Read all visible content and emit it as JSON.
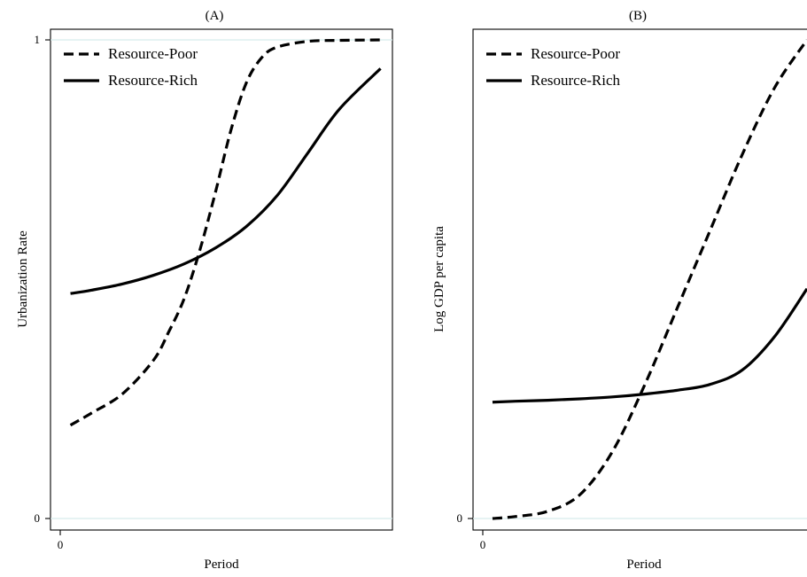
{
  "chart_data": [
    {
      "type": "line",
      "title": "(A)",
      "xlabel": "Period",
      "ylabel": "Urbanization Rate",
      "x_ticks": [
        "0"
      ],
      "y_ticks": [
        "0",
        "1"
      ],
      "ylim": [
        0,
        1
      ],
      "xlim": [
        0,
        10
      ],
      "legend": "top-left",
      "series": [
        {
          "name": "Resource-Poor",
          "style": "dashed",
          "x": [
            0.33,
            1,
            2,
            3,
            3.5,
            4,
            4.5,
            5,
            5.5,
            6,
            6.5,
            7,
            8,
            9,
            10.33
          ],
          "y": [
            0.195,
            0.22,
            0.26,
            0.33,
            0.39,
            0.46,
            0.56,
            0.68,
            0.81,
            0.91,
            0.963,
            0.985,
            0.997,
            0.999,
            1.0
          ]
        },
        {
          "name": "Resource-Rich",
          "style": "solid",
          "x": [
            0.33,
            1,
            2,
            3,
            4,
            5,
            6,
            7,
            8,
            9,
            10.33
          ],
          "y": [
            0.47,
            0.477,
            0.49,
            0.508,
            0.532,
            0.565,
            0.61,
            0.675,
            0.765,
            0.855,
            0.94
          ]
        }
      ],
      "colors": {
        "line": "#000000",
        "reference": "#d8ecec"
      }
    },
    {
      "type": "line",
      "title": "(B)",
      "xlabel": "Period",
      "ylabel": "Log GDP per capita",
      "x_ticks": [
        "0"
      ],
      "y_ticks": [
        "0"
      ],
      "ylim": [
        0,
        1
      ],
      "xlim": [
        0,
        10
      ],
      "legend": "top-left",
      "series": [
        {
          "name": "Resource-Poor",
          "style": "dashed",
          "x": [
            0.3,
            1,
            2,
            3,
            4,
            5,
            6,
            7,
            8,
            9,
            10
          ],
          "y": [
            0.0,
            0.004,
            0.015,
            0.05,
            0.14,
            0.28,
            0.44,
            0.6,
            0.76,
            0.9,
            1.0
          ]
        },
        {
          "name": "Resource-Rich",
          "style": "solid",
          "x": [
            0.3,
            1,
            2,
            3,
            4,
            5,
            6,
            7,
            8,
            9,
            10
          ],
          "y": [
            0.243,
            0.245,
            0.247,
            0.25,
            0.254,
            0.26,
            0.268,
            0.28,
            0.31,
            0.38,
            0.48
          ]
        }
      ],
      "colors": {
        "line": "#000000",
        "reference": "#d8ecec"
      }
    }
  ]
}
